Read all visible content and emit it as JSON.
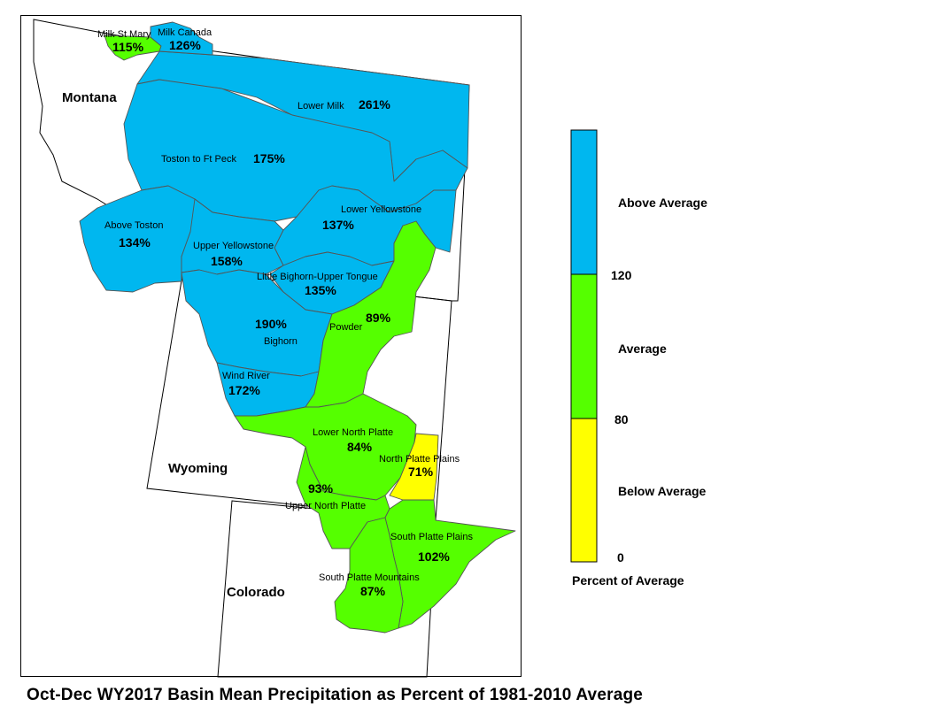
{
  "title": "Oct-Dec WY2017 Basin Mean Precipitation as Percent of 1981-2010 Average",
  "states": {
    "montana": "Montana",
    "wyoming": "Wyoming",
    "colorado": "Colorado"
  },
  "colors": {
    "above": "#00b7ef",
    "average": "#55ff00",
    "below": "#ffff00"
  },
  "basins": [
    {
      "id": "milk-st-mary",
      "name": "Milk St Mary",
      "pct": "115%",
      "category": "average"
    },
    {
      "id": "milk-canada",
      "name": "Milk Canada",
      "pct": "126%",
      "category": "above"
    },
    {
      "id": "lower-milk",
      "name": "Lower Milk",
      "pct": "261%",
      "category": "above"
    },
    {
      "id": "toston-to-ft-peck",
      "name": "Toston to Ft Peck",
      "pct": "175%",
      "category": "above"
    },
    {
      "id": "above-toston",
      "name": "Above Toston",
      "pct": "134%",
      "category": "above"
    },
    {
      "id": "lower-yellowstone",
      "name": "Lower Yellowstone",
      "pct": "137%",
      "category": "above"
    },
    {
      "id": "upper-yellowstone",
      "name": "Upper Yellowstone",
      "pct": "158%",
      "category": "above"
    },
    {
      "id": "little-bighorn-upper-tongue",
      "name": "Little Bighorn-Upper Tongue",
      "pct": "135%",
      "category": "above"
    },
    {
      "id": "powder",
      "name": "Powder",
      "pct": "89%",
      "category": "average"
    },
    {
      "id": "bighorn",
      "name": "Bighorn",
      "pct": "190%",
      "category": "above"
    },
    {
      "id": "wind-river",
      "name": "Wind River",
      "pct": "172%",
      "category": "above"
    },
    {
      "id": "lower-north-platte",
      "name": "Lower North Platte",
      "pct": "84%",
      "category": "average"
    },
    {
      "id": "north-platte-plains",
      "name": "North Platte Plains",
      "pct": "71%",
      "category": "below"
    },
    {
      "id": "upper-north-platte",
      "name": "Upper North Platte",
      "pct": "93%",
      "category": "average"
    },
    {
      "id": "south-platte-plains",
      "name": "South Platte Plains",
      "pct": "102%",
      "category": "average"
    },
    {
      "id": "south-platte-mountains",
      "name": "South Platte Mountains",
      "pct": "87%",
      "category": "average"
    }
  ],
  "legend": {
    "above_label": "Above Average",
    "average_label": "Average",
    "below_label": "Below Average",
    "tick_120": "120",
    "tick_80": "80",
    "tick_0": "0",
    "caption": "Percent of Average"
  }
}
